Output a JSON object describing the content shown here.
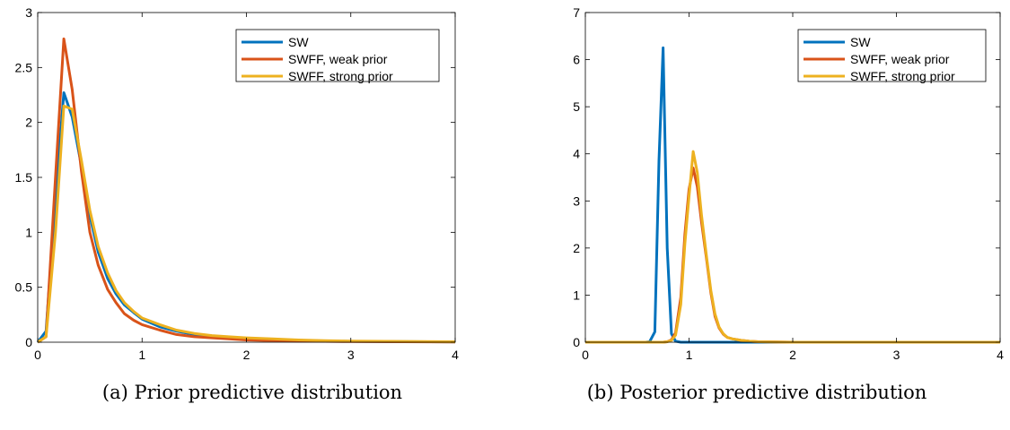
{
  "chart_data": [
    {
      "type": "line",
      "caption": "(a) Prior predictive distribution",
      "xlim": [
        0,
        4
      ],
      "ylim": [
        0,
        3
      ],
      "xticks": [
        0,
        1,
        2,
        3,
        4
      ],
      "yticks": [
        0,
        0.5,
        1,
        1.5,
        2,
        2.5,
        3
      ],
      "xtick_labels": [
        "0",
        "1",
        "2",
        "3",
        "4"
      ],
      "ytick_labels": [
        "0",
        "0.5",
        "1",
        "1.5",
        "2",
        "2.5",
        "3"
      ],
      "legend_position": "top-right",
      "grid": false,
      "series": [
        {
          "name": "SW",
          "color": "#0072BD",
          "x": [
            0,
            0.08,
            0.17,
            0.25,
            0.33,
            0.42,
            0.5,
            0.58,
            0.67,
            0.75,
            0.83,
            0.92,
            1.0,
            1.17,
            1.33,
            1.5,
            1.67,
            1.83,
            2.0,
            2.25,
            2.5,
            2.75,
            3.0,
            3.5,
            4.0
          ],
          "y": [
            0,
            0.1,
            1.3,
            2.27,
            2.05,
            1.6,
            1.15,
            0.82,
            0.58,
            0.44,
            0.34,
            0.27,
            0.21,
            0.14,
            0.1,
            0.07,
            0.05,
            0.04,
            0.03,
            0.02,
            0.015,
            0.01,
            0.008,
            0.005,
            0.003
          ]
        },
        {
          "name": "SWFF, weak prior",
          "color": "#D95319",
          "x": [
            0,
            0.08,
            0.17,
            0.25,
            0.33,
            0.42,
            0.5,
            0.58,
            0.67,
            0.75,
            0.83,
            0.92,
            1.0,
            1.17,
            1.33,
            1.5,
            1.67,
            1.83,
            2.0,
            2.25,
            2.5,
            2.75,
            3.0,
            3.5,
            4.0
          ],
          "y": [
            0,
            0.05,
            1.5,
            2.76,
            2.3,
            1.55,
            1.0,
            0.7,
            0.48,
            0.36,
            0.26,
            0.2,
            0.16,
            0.11,
            0.07,
            0.05,
            0.04,
            0.03,
            0.02,
            0.015,
            0.01,
            0.008,
            0.006,
            0.004,
            0.002
          ]
        },
        {
          "name": "SWFF, strong prior",
          "color": "#EDB120",
          "x": [
            0,
            0.08,
            0.17,
            0.25,
            0.33,
            0.42,
            0.5,
            0.58,
            0.67,
            0.75,
            0.83,
            0.92,
            1.0,
            1.17,
            1.33,
            1.5,
            1.67,
            1.83,
            2.0,
            2.25,
            2.5,
            2.75,
            3.0,
            3.5,
            4.0
          ],
          "y": [
            0,
            0.05,
            1.0,
            2.15,
            2.12,
            1.65,
            1.2,
            0.87,
            0.63,
            0.47,
            0.36,
            0.28,
            0.22,
            0.16,
            0.11,
            0.08,
            0.06,
            0.05,
            0.04,
            0.03,
            0.02,
            0.015,
            0.01,
            0.007,
            0.004
          ]
        }
      ]
    },
    {
      "type": "line",
      "caption": "(b) Posterior predictive distribution",
      "xlim": [
        0,
        4
      ],
      "ylim": [
        0,
        7
      ],
      "xticks": [
        0,
        1,
        2,
        3,
        4
      ],
      "yticks": [
        0,
        1,
        2,
        3,
        4,
        5,
        6,
        7
      ],
      "xtick_labels": [
        "0",
        "1",
        "2",
        "3",
        "4"
      ],
      "ytick_labels": [
        "0",
        "1",
        "2",
        "3",
        "4",
        "5",
        "6",
        "7"
      ],
      "legend_position": "top-right",
      "grid": false,
      "series": [
        {
          "name": "SW",
          "color": "#0072BD",
          "x": [
            0,
            0.58,
            0.62,
            0.67,
            0.71,
            0.75,
            0.79,
            0.83,
            0.87,
            0.92,
            0.96,
            1.0,
            1.5,
            2.0,
            3.0,
            4.0
          ],
          "y": [
            0,
            0,
            0.01,
            0.22,
            3.85,
            6.25,
            2.0,
            0.18,
            0.02,
            0,
            0,
            0,
            0,
            0,
            0,
            0
          ]
        },
        {
          "name": "SWFF, weak prior",
          "color": "#D95319",
          "x": [
            0,
            0.75,
            0.79,
            0.83,
            0.87,
            0.92,
            0.96,
            1.0,
            1.04,
            1.08,
            1.12,
            1.17,
            1.21,
            1.25,
            1.29,
            1.33,
            1.37,
            1.42,
            1.5,
            1.58,
            1.67,
            2.0,
            3.0,
            4.0
          ],
          "y": [
            0,
            0,
            0.01,
            0.05,
            0.2,
            0.95,
            2.3,
            3.25,
            3.7,
            3.3,
            2.55,
            1.75,
            1.05,
            0.55,
            0.3,
            0.17,
            0.1,
            0.07,
            0.04,
            0.02,
            0.01,
            0,
            0,
            0
          ]
        },
        {
          "name": "SWFF, strong prior",
          "color": "#EDB120",
          "x": [
            0,
            0.75,
            0.79,
            0.83,
            0.87,
            0.92,
            0.96,
            1.0,
            1.04,
            1.08,
            1.12,
            1.17,
            1.21,
            1.25,
            1.29,
            1.33,
            1.37,
            1.42,
            1.5,
            1.58,
            1.67,
            2.0,
            3.0,
            4.0
          ],
          "y": [
            0,
            0,
            0.01,
            0.04,
            0.15,
            0.8,
            2.1,
            3.1,
            4.05,
            3.6,
            2.7,
            1.8,
            1.1,
            0.6,
            0.32,
            0.18,
            0.1,
            0.07,
            0.04,
            0.02,
            0.01,
            0,
            0,
            0
          ]
        }
      ]
    }
  ]
}
